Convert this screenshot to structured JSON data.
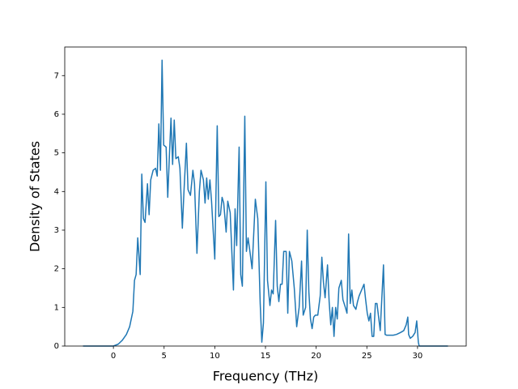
{
  "chart_data": {
    "type": "line",
    "xlabel": "Frequency (THz)",
    "ylabel": "Density of States",
    "x": [
      -3,
      0,
      0.48,
      0.88,
      1.28,
      1.6,
      1.92,
      2.08,
      2.24,
      2.4,
      2.64,
      2.8,
      2.96,
      3.12,
      3.36,
      3.52,
      3.68,
      3.92,
      4.16,
      4.32,
      4.48,
      4.64,
      4.8,
      4.96,
      5.2,
      5.36,
      5.52,
      5.68,
      5.84,
      6.0,
      6.16,
      6.4,
      6.56,
      6.8,
      6.96,
      7.2,
      7.36,
      7.6,
      7.84,
      8.0,
      8.24,
      8.48,
      8.64,
      8.88,
      9.04,
      9.2,
      9.36,
      9.52,
      9.68,
      10.0,
      10.24,
      10.4,
      10.56,
      10.72,
      10.88,
      11.12,
      11.28,
      11.52,
      11.84,
      12.0,
      12.16,
      12.4,
      12.56,
      12.72,
      12.96,
      13.12,
      13.28,
      13.44,
      13.68,
      14.0,
      14.24,
      14.48,
      14.64,
      14.8,
      15.04,
      15.2,
      15.44,
      15.6,
      15.76,
      16.0,
      16.16,
      16.32,
      16.48,
      16.64,
      16.8,
      17.04,
      17.2,
      17.36,
      17.6,
      17.84,
      18.08,
      18.32,
      18.56,
      18.72,
      18.96,
      19.12,
      19.28,
      19.44,
      19.6,
      19.76,
      19.92,
      20.16,
      20.4,
      20.56,
      20.72,
      20.88,
      21.12,
      21.28,
      21.44,
      21.6,
      21.76,
      21.92,
      22.08,
      22.24,
      22.48,
      22.64,
      22.88,
      23.04,
      23.2,
      23.36,
      23.52,
      23.68,
      23.92,
      24.08,
      24.24,
      24.48,
      24.72,
      24.88,
      25.04,
      25.2,
      25.36,
      25.52,
      25.68,
      25.84,
      26.0,
      26.16,
      26.32,
      26.64,
      26.8,
      26.96,
      27.12,
      27.6,
      27.92,
      28.32,
      28.64,
      28.88,
      29.04,
      29.12,
      29.28,
      29.52,
      29.76,
      29.92,
      30.08,
      30.16,
      33
    ],
    "series": [
      {
        "color": "#1f77b4",
        "values": [
          0,
          0,
          0.05,
          0.15,
          0.3,
          0.5,
          0.9,
          1.7,
          1.85,
          2.8,
          1.85,
          4.45,
          3.3,
          3.2,
          4.2,
          3.4,
          4.3,
          4.55,
          4.6,
          4.4,
          5.75,
          4.55,
          7.4,
          5.2,
          5.15,
          3.85,
          4.9,
          5.9,
          4.7,
          5.85,
          4.85,
          4.9,
          4.6,
          3.05,
          4.0,
          5.25,
          4.05,
          3.9,
          4.55,
          4.2,
          2.4,
          4.0,
          4.55,
          4.3,
          3.7,
          4.35,
          3.8,
          4.3,
          3.75,
          2.25,
          5.7,
          3.35,
          3.4,
          3.85,
          3.7,
          2.95,
          3.75,
          3.45,
          1.45,
          3.55,
          2.6,
          5.15,
          1.85,
          1.55,
          5.95,
          2.45,
          2.8,
          2.5,
          2.0,
          3.8,
          3.3,
          1.1,
          0.1,
          0.6,
          4.25,
          1.7,
          1.05,
          1.45,
          1.35,
          3.25,
          1.55,
          1.15,
          1.6,
          1.6,
          2.45,
          2.45,
          0.85,
          2.45,
          2.2,
          1.5,
          0.5,
          1.0,
          2.2,
          0.8,
          1.0,
          3.0,
          1.4,
          0.7,
          0.45,
          0.75,
          0.8,
          0.8,
          1.3,
          2.3,
          1.65,
          1.25,
          2.1,
          1.15,
          0.55,
          1.0,
          0.25,
          1.0,
          0.7,
          1.5,
          1.7,
          1.2,
          1.0,
          0.85,
          2.9,
          1.1,
          1.45,
          1.05,
          0.95,
          1.15,
          1.3,
          1.45,
          1.6,
          1.2,
          0.85,
          0.65,
          0.85,
          0.25,
          0.25,
          1.1,
          1.1,
          0.75,
          0.4,
          2.1,
          0.3,
          0.28,
          0.28,
          0.28,
          0.3,
          0.35,
          0.4,
          0.55,
          0.75,
          0.3,
          0.2,
          0.25,
          0.35,
          0.65,
          0.1,
          0,
          0
        ]
      }
    ],
    "xlim": [
      -4.8,
      34.8
    ],
    "xticks": [
      0,
      5,
      10,
      15,
      20,
      25,
      30
    ],
    "ylim": [
      0,
      7.74
    ],
    "yticks": [
      0,
      1,
      2,
      3,
      4,
      5,
      6,
      7
    ]
  }
}
